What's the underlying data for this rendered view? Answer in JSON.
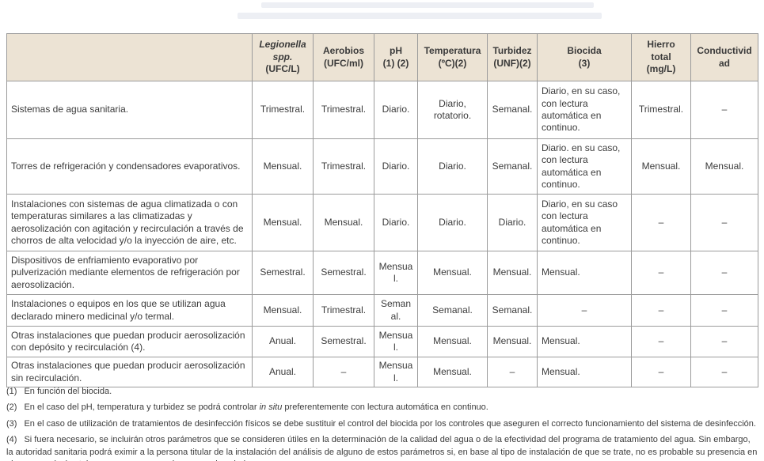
{
  "colors": {
    "header_bg": "#ece3d4",
    "border": "#9b9b9b",
    "text": "#3c3c3c",
    "page_bg": "#ffffff"
  },
  "table": {
    "columns": [
      {
        "lines": [
          "Legionella",
          "spp.",
          "(UFC/L)"
        ],
        "italic": [
          true,
          true,
          false
        ]
      },
      {
        "lines": [
          "Aerobios",
          "(UFC/ml)"
        ],
        "italic": [
          false,
          false
        ]
      },
      {
        "lines": [
          "pH",
          "(1) (2)"
        ],
        "italic": [
          false,
          false
        ]
      },
      {
        "lines": [
          "Temperatura",
          "(ºC)(2)"
        ],
        "italic": [
          false,
          false
        ]
      },
      {
        "lines": [
          "Turbidez",
          "(UNF)(2)"
        ],
        "italic": [
          false,
          false
        ]
      },
      {
        "lines": [
          "Biocida",
          "(3)"
        ],
        "italic": [
          false,
          false
        ]
      },
      {
        "lines": [
          "Hierro",
          "total",
          "(mg/L)"
        ],
        "italic": [
          false,
          false,
          false
        ]
      },
      {
        "lines": [
          "Conductividad"
        ],
        "italic": [
          false
        ]
      }
    ],
    "rows": [
      {
        "label": "Sistemas de agua sanitaria.",
        "values": [
          "Trimestral.",
          "Trimestral.",
          "Diario.",
          "Diario, rotatorio.",
          "Semanal.",
          "Diario, en su caso, con lectura automática en continuo.",
          "Trimestral.",
          "–"
        ]
      },
      {
        "label": "Torres de refrigeración y condensadores evaporativos.",
        "values": [
          "Mensual.",
          "Trimestral.",
          "Diario.",
          "Diario.",
          "Semanal.",
          "Diario. en su caso, con lectura automática en continuo.",
          "Mensual.",
          "Mensual."
        ]
      },
      {
        "label": "Instalaciones con sistemas de agua climatizada o con temperaturas similares a las climatizadas y aerosolización con agitación y recirculación a través de chorros de alta velocidad y/o la inyección de aire, etc.",
        "values": [
          "Mensual.",
          "Mensual.",
          "Diario.",
          "Diario.",
          "Diario.",
          "Diario, en su caso con lectura automática en continuo.",
          "–",
          "–"
        ]
      },
      {
        "label": "Dispositivos de enfriamiento evaporativo por pulverización mediante elementos de refrigeración por aerosolización.",
        "values": [
          "Semestral.",
          "Semestral.",
          "Mensual.",
          "Mensual.",
          "Mensual.",
          "Mensual.",
          "–",
          "–"
        ]
      },
      {
        "label": "Instalaciones o equipos en los que se utilizan agua declarado minero medicinal y/o termal.",
        "values": [
          "Mensual.",
          "Trimestral.",
          "Semanal.",
          "Semanal.",
          "Semanal.",
          "–",
          "–",
          "–"
        ]
      },
      {
        "label": "Otras instalaciones que puedan producir aerosolización con depósito y recirculación (4).",
        "values": [
          "Anual.",
          "Semestral.",
          "Mensual.",
          "Mensual.",
          "Mensual.",
          "Mensual.",
          "–",
          "–"
        ]
      },
      {
        "label": "Otras instalaciones que puedan producir aerosolización sin recirculación.",
        "values": [
          "Anual.",
          "–",
          "Mensual.",
          "Mensual.",
          "–",
          "Mensual.",
          "–",
          "–"
        ]
      }
    ]
  },
  "footnotes": [
    {
      "marker": "(1)",
      "parts": [
        {
          "t": "En función del biocida.",
          "i": false
        }
      ]
    },
    {
      "marker": "(2)",
      "parts": [
        {
          "t": "En el caso del pH, temperatura y turbidez se podrá controlar ",
          "i": false
        },
        {
          "t": "in situ",
          "i": true
        },
        {
          "t": " preferentemente con lectura automática en continuo.",
          "i": false
        }
      ]
    },
    {
      "marker": "(3)",
      "parts": [
        {
          "t": "En el caso de utilización de tratamientos de desinfección físicos se debe sustituir el control del biocida por los controles que aseguren el correcto funcionamiento del sistema de desinfección.",
          "i": false
        }
      ]
    },
    {
      "marker": "(4)",
      "parts": [
        {
          "t": "Si fuera necesario, se incluirán otros parámetros que se consideren útiles en la determinación de la calidad del agua o de la efectividad del programa de tratamiento del agua. Sin embargo, la autoridad sanitaria podrá eximir a la persona titular de la instalación del análisis de alguno de estos parámetros si, en base al tipo de instalación de que se trate, no es probable su presencia en el agua en niveles tales que supongan un riesgo para la salud.",
          "i": false
        }
      ]
    }
  ]
}
